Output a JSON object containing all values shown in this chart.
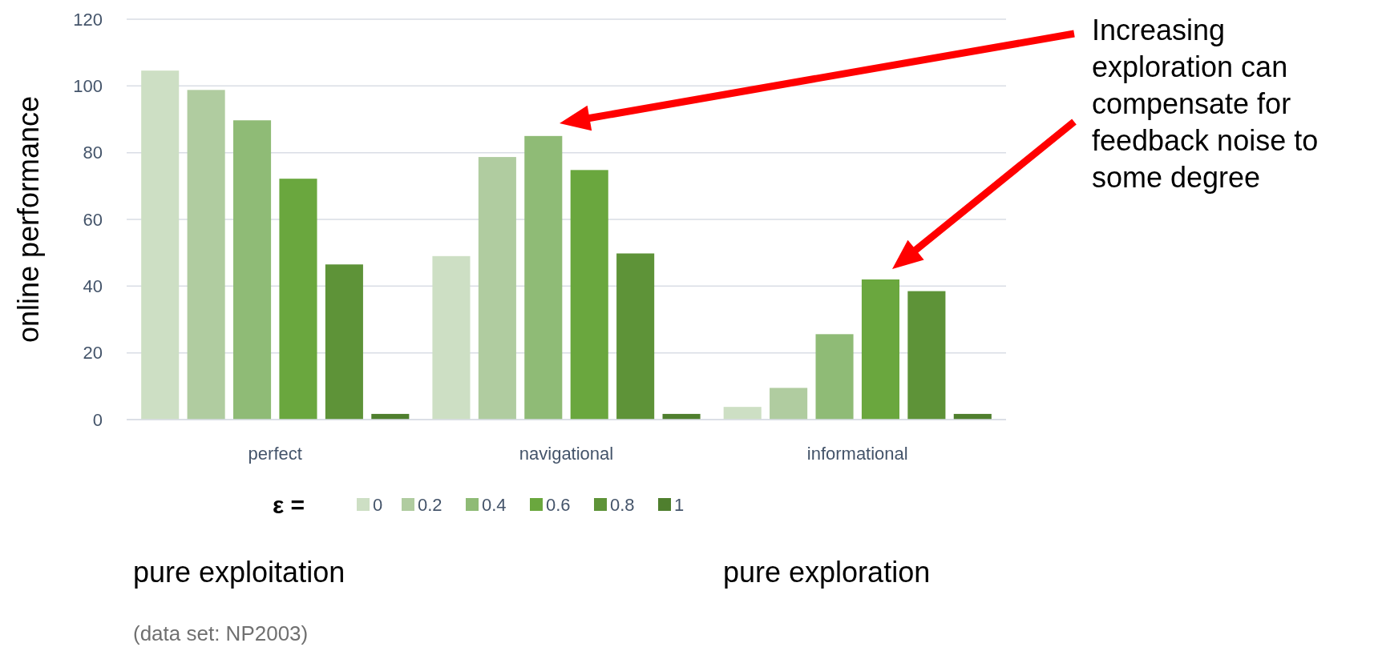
{
  "chart_data": {
    "type": "bar",
    "ylabel": "online performance",
    "legend_title": "ε =",
    "categories": [
      "perfect",
      "navigational",
      "informational"
    ],
    "series": [
      {
        "name": "0",
        "color": "#cddfc4",
        "values": [
          104.6,
          49,
          3.8
        ]
      },
      {
        "name": "0.2",
        "color": "#b0cca0",
        "values": [
          98.8,
          78.7,
          9.5
        ]
      },
      {
        "name": "0.4",
        "color": "#8fbb76",
        "values": [
          89.7,
          85,
          25.6
        ]
      },
      {
        "name": "0.6",
        "color": "#6aa73e",
        "values": [
          72.2,
          74.8,
          42
        ]
      },
      {
        "name": "0.8",
        "color": "#5e9338",
        "values": [
          46.5,
          49.8,
          38.5
        ]
      },
      {
        "name": "1",
        "color": "#4f7f2e",
        "values": [
          1.7,
          1.7,
          1.7
        ]
      }
    ],
    "ylim": [
      0,
      120
    ],
    "yticks": [
      0,
      20,
      40,
      60,
      80,
      100,
      120
    ],
    "grid": "y",
    "legend": "bottom",
    "annotations": [
      {
        "text": "Increasing\nexploration can\ncompensate for\nfeedback noise to\nsome degree"
      },
      "pure exploitation",
      "pure exploration",
      "(data set: NP2003)"
    ]
  }
}
